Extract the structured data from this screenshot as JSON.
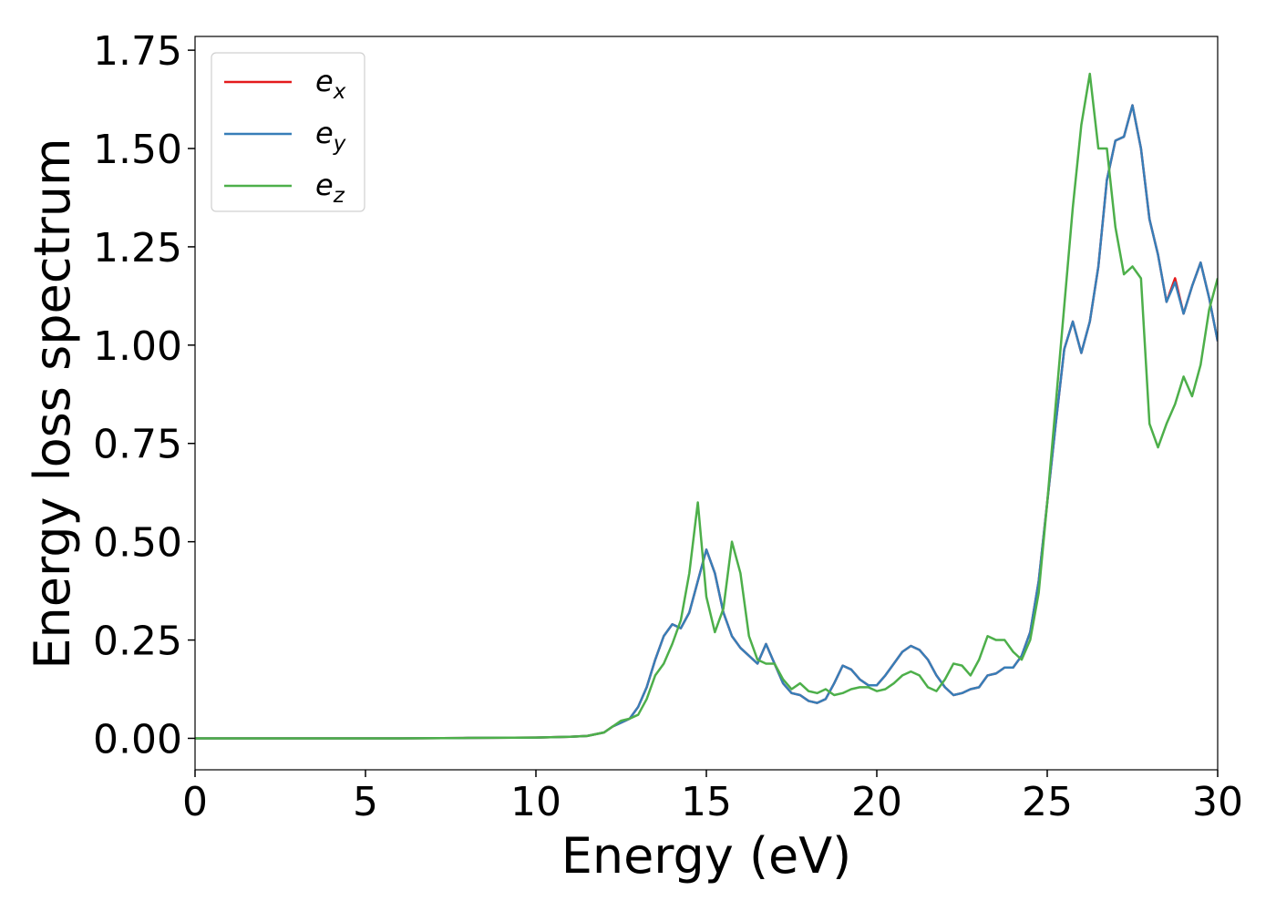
{
  "chart_data": {
    "type": "line",
    "xlabel": "Energy (eV)",
    "ylabel": "Energy loss spectrum",
    "x": [
      0,
      2,
      4,
      6,
      8,
      10,
      11,
      11.5,
      12,
      12.25,
      12.5,
      12.75,
      13,
      13.25,
      13.5,
      13.75,
      14,
      14.25,
      14.5,
      14.75,
      15,
      15.25,
      15.5,
      15.75,
      16,
      16.25,
      16.5,
      16.75,
      17,
      17.25,
      17.5,
      17.75,
      18,
      18.25,
      18.5,
      18.75,
      19,
      19.25,
      19.5,
      19.75,
      20,
      20.25,
      20.5,
      20.75,
      21,
      21.25,
      21.5,
      21.75,
      22,
      22.25,
      22.5,
      22.75,
      23,
      23.25,
      23.5,
      23.75,
      24,
      24.25,
      24.5,
      24.75,
      25,
      25.25,
      25.5,
      25.75,
      26,
      26.25,
      26.5,
      26.75,
      27,
      27.25,
      27.5,
      27.75,
      28,
      28.25,
      28.5,
      28.75,
      29,
      29.25,
      29.5,
      29.75,
      30
    ],
    "series": [
      {
        "name": "ex",
        "color": "#e41a1c",
        "values": [
          0,
          0,
          0,
          0,
          0.001,
          0.002,
          0.004,
          0.006,
          0.015,
          0.03,
          0.04,
          0.05,
          0.08,
          0.13,
          0.2,
          0.26,
          0.29,
          0.28,
          0.32,
          0.4,
          0.48,
          0.42,
          0.32,
          0.26,
          0.23,
          0.21,
          0.19,
          0.24,
          0.19,
          0.14,
          0.115,
          0.11,
          0.095,
          0.09,
          0.1,
          0.14,
          0.185,
          0.175,
          0.15,
          0.135,
          0.135,
          0.16,
          0.19,
          0.22,
          0.235,
          0.225,
          0.2,
          0.16,
          0.13,
          0.11,
          0.115,
          0.125,
          0.13,
          0.16,
          0.165,
          0.18,
          0.18,
          0.21,
          0.27,
          0.4,
          0.6,
          0.8,
          0.99,
          1.06,
          0.98,
          1.06,
          1.2,
          1.42,
          1.52,
          1.53,
          1.61,
          1.5,
          1.32,
          1.23,
          1.11,
          1.17,
          1.08,
          1.15,
          1.21,
          1.12,
          1.01
        ]
      },
      {
        "name": "ey",
        "color": "#377eb8",
        "values": [
          0,
          0,
          0,
          0,
          0.001,
          0.002,
          0.004,
          0.006,
          0.015,
          0.03,
          0.04,
          0.05,
          0.08,
          0.13,
          0.2,
          0.26,
          0.29,
          0.28,
          0.32,
          0.4,
          0.48,
          0.42,
          0.32,
          0.26,
          0.23,
          0.21,
          0.19,
          0.24,
          0.19,
          0.14,
          0.115,
          0.11,
          0.095,
          0.09,
          0.1,
          0.14,
          0.185,
          0.175,
          0.15,
          0.135,
          0.135,
          0.16,
          0.19,
          0.22,
          0.235,
          0.225,
          0.2,
          0.16,
          0.13,
          0.11,
          0.115,
          0.125,
          0.13,
          0.16,
          0.165,
          0.18,
          0.18,
          0.21,
          0.27,
          0.4,
          0.6,
          0.8,
          0.99,
          1.06,
          0.98,
          1.06,
          1.2,
          1.42,
          1.52,
          1.53,
          1.61,
          1.5,
          1.32,
          1.23,
          1.11,
          1.16,
          1.08,
          1.15,
          1.21,
          1.12,
          1.01
        ]
      },
      {
        "name": "ez",
        "color": "#4daf4a",
        "values": [
          0,
          0,
          0,
          0,
          0.001,
          0.002,
          0.004,
          0.006,
          0.015,
          0.03,
          0.045,
          0.05,
          0.06,
          0.1,
          0.16,
          0.19,
          0.24,
          0.3,
          0.42,
          0.6,
          0.36,
          0.27,
          0.33,
          0.5,
          0.42,
          0.26,
          0.2,
          0.19,
          0.19,
          0.15,
          0.125,
          0.14,
          0.12,
          0.115,
          0.125,
          0.11,
          0.115,
          0.125,
          0.13,
          0.13,
          0.12,
          0.125,
          0.14,
          0.16,
          0.17,
          0.16,
          0.13,
          0.12,
          0.15,
          0.19,
          0.185,
          0.16,
          0.2,
          0.26,
          0.25,
          0.25,
          0.22,
          0.2,
          0.25,
          0.37,
          0.6,
          0.85,
          1.1,
          1.35,
          1.56,
          1.69,
          1.5,
          1.5,
          1.3,
          1.18,
          1.2,
          1.17,
          0.8,
          0.74,
          0.8,
          0.85,
          0.92,
          0.87,
          0.95,
          1.09,
          1.17
        ]
      }
    ],
    "xlim": [
      0,
      30
    ],
    "xticks": [
      0,
      5,
      10,
      15,
      20,
      25,
      30
    ],
    "ylim": [
      -0.08,
      1.785
    ],
    "yticks": [
      {
        "value": 0,
        "label": "0.00"
      },
      {
        "value": 0.25,
        "label": "0.25"
      },
      {
        "value": 0.5,
        "label": "0.50"
      },
      {
        "value": 0.75,
        "label": "0.75"
      },
      {
        "value": 1,
        "label": "1.00"
      },
      {
        "value": 1.25,
        "label": "1.25"
      },
      {
        "value": 1.5,
        "label": "1.50"
      },
      {
        "value": 1.75,
        "label": "1.75"
      }
    ],
    "grid": false,
    "legend": "upper left"
  }
}
